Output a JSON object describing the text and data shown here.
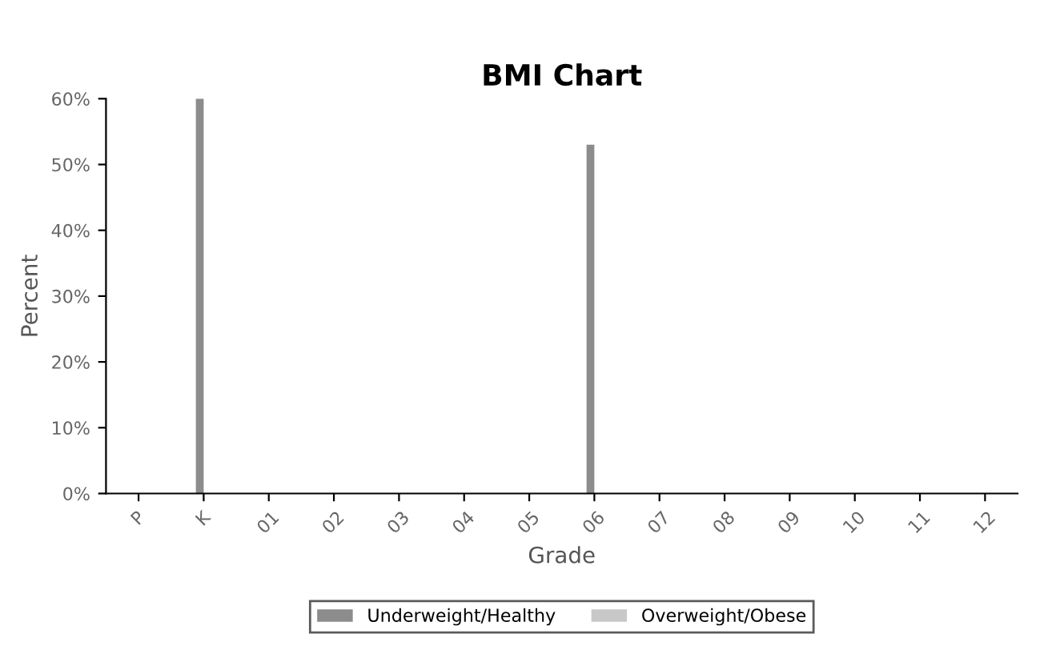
{
  "chart_data": {
    "type": "bar",
    "title": "BMI Chart",
    "xlabel": "Grade",
    "ylabel": "Percent",
    "categories": [
      "P",
      "K",
      "01",
      "02",
      "03",
      "04",
      "05",
      "06",
      "07",
      "08",
      "09",
      "10",
      "11",
      "12"
    ],
    "series": [
      {
        "name": "Underweight/Healthy",
        "color": "#8c8c8c",
        "values": [
          null,
          60,
          null,
          null,
          null,
          null,
          null,
          53,
          null,
          null,
          null,
          null,
          null,
          null
        ]
      },
      {
        "name": "Overweight/Obese",
        "color": "#c8c8c8",
        "values": [
          null,
          null,
          null,
          null,
          null,
          null,
          null,
          null,
          null,
          null,
          null,
          null,
          null,
          null
        ]
      }
    ],
    "ylim": [
      0,
      60
    ],
    "yticks": [
      {
        "value": 0,
        "label": "0%"
      },
      {
        "value": 10,
        "label": "10%"
      },
      {
        "value": 20,
        "label": "20%"
      },
      {
        "value": 30,
        "label": "30%"
      },
      {
        "value": 40,
        "label": "40%"
      },
      {
        "value": 50,
        "label": "50%"
      },
      {
        "value": 60,
        "label": "60%"
      }
    ],
    "grid": false,
    "legend": "bottom"
  }
}
